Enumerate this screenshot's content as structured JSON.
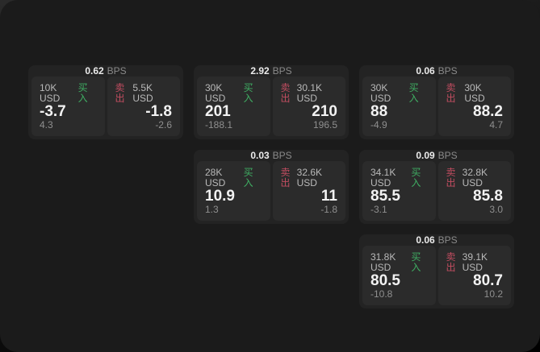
{
  "labels": {
    "bps": "BPS",
    "buy": "买入",
    "sell": "卖出"
  },
  "colors": {
    "buy": "#3fae63",
    "sell": "#c14d60",
    "window_background": "#1b1b1b",
    "card_background": "#232323",
    "panel_background": "#2b2b2b"
  },
  "cards": [
    {
      "row": 1,
      "col": 1,
      "bps": "0.62",
      "buy": {
        "amount": "10K USD",
        "price": "-3.7",
        "delta": "4.3"
      },
      "sell": {
        "amount": "5.5K USD",
        "price": "-1.8",
        "delta": "-2.6"
      }
    },
    {
      "row": 1,
      "col": 2,
      "bps": "2.92",
      "buy": {
        "amount": "30K USD",
        "price": "201",
        "delta": "-188.1"
      },
      "sell": {
        "amount": "30.1K USD",
        "price": "210",
        "delta": "196.5"
      }
    },
    {
      "row": 1,
      "col": 3,
      "bps": "0.06",
      "buy": {
        "amount": "30K USD",
        "price": "88",
        "delta": "-4.9"
      },
      "sell": {
        "amount": "30K USD",
        "price": "88.2",
        "delta": "4.7"
      }
    },
    {
      "row": 2,
      "col": 2,
      "bps": "0.03",
      "buy": {
        "amount": "28K USD",
        "price": "10.9",
        "delta": "1.3"
      },
      "sell": {
        "amount": "32.6K USD",
        "price": "11",
        "delta": "-1.8"
      }
    },
    {
      "row": 2,
      "col": 3,
      "bps": "0.09",
      "buy": {
        "amount": "34.1K USD",
        "price": "85.5",
        "delta": "-3.1"
      },
      "sell": {
        "amount": "32.8K USD",
        "price": "85.8",
        "delta": "3.0"
      }
    },
    {
      "row": 3,
      "col": 3,
      "bps": "0.06",
      "buy": {
        "amount": "31.8K USD",
        "price": "80.5",
        "delta": "-10.8"
      },
      "sell": {
        "amount": "39.1K USD",
        "price": "80.7",
        "delta": "10.2"
      }
    }
  ]
}
